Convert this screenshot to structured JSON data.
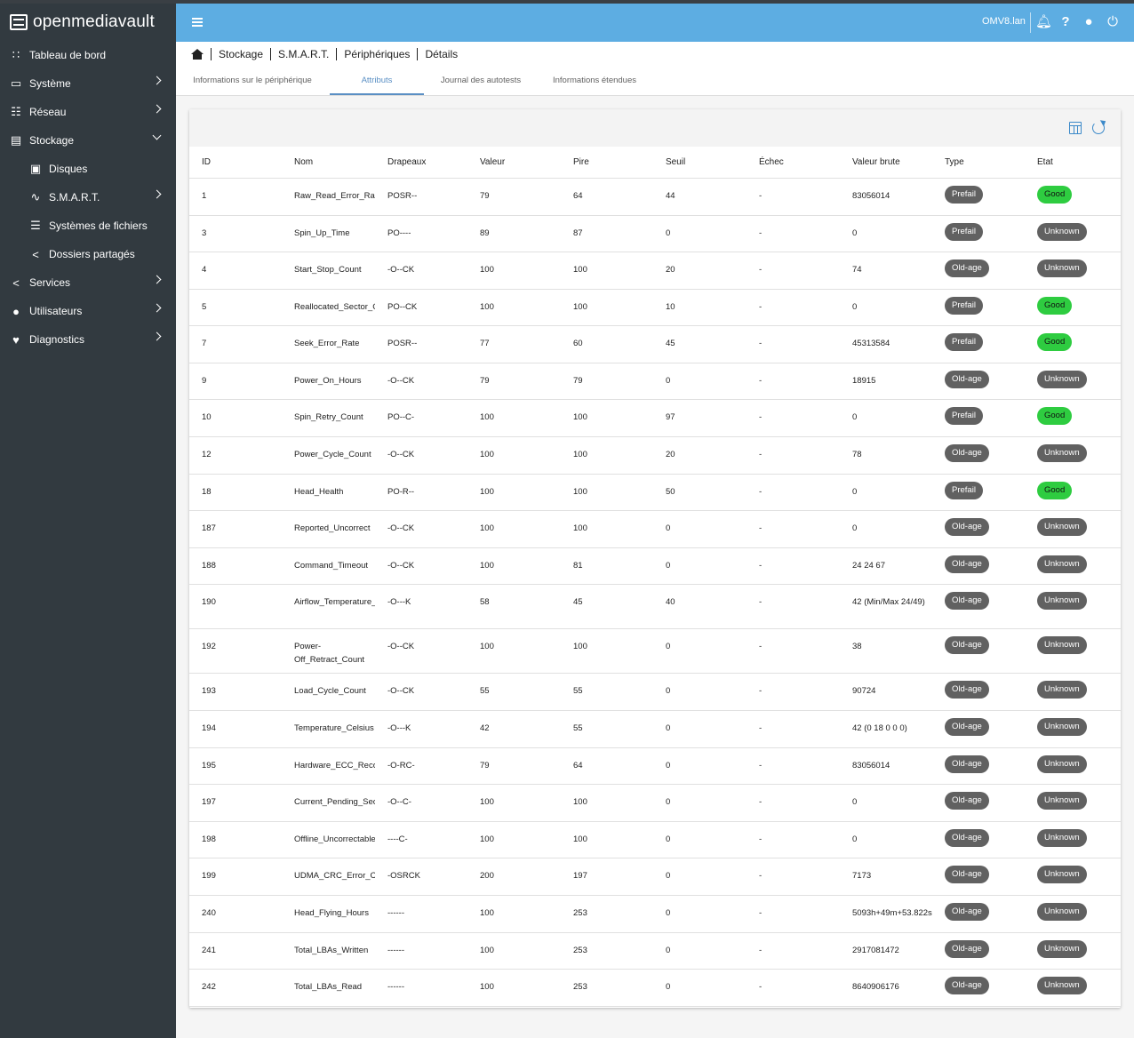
{
  "app": {
    "name": "openmediavault",
    "hostname": "OMV8.lan"
  },
  "sidebar": {
    "items": [
      {
        "label": "Tableau de bord",
        "icon": "dashboard-icon",
        "sub": false,
        "chevron": ""
      },
      {
        "label": "Système",
        "icon": "laptop-icon",
        "sub": false,
        "chevron": "right"
      },
      {
        "label": "Réseau",
        "icon": "network-icon",
        "sub": false,
        "chevron": "right"
      },
      {
        "label": "Stockage",
        "icon": "storage-icon",
        "sub": false,
        "chevron": "down"
      },
      {
        "label": "Disques",
        "icon": "disk-icon",
        "sub": true,
        "chevron": ""
      },
      {
        "label": "S.M.A.R.T.",
        "icon": "pulse-icon",
        "sub": true,
        "chevron": "right"
      },
      {
        "label": "Systèmes de fichiers",
        "icon": "filesystem-icon",
        "sub": true,
        "chevron": ""
      },
      {
        "label": "Dossiers partagés",
        "icon": "share-icon",
        "sub": true,
        "chevron": ""
      },
      {
        "label": "Services",
        "icon": "share-icon",
        "sub": false,
        "chevron": "right"
      },
      {
        "label": "Utilisateurs",
        "icon": "users-icon",
        "sub": false,
        "chevron": "right"
      },
      {
        "label": "Diagnostics",
        "icon": "heart-pulse-icon",
        "sub": false,
        "chevron": "right"
      }
    ]
  },
  "breadcrumb": [
    "Stockage",
    "S.M.A.R.T.",
    "Périphériques",
    "Détails"
  ],
  "tabs": [
    {
      "label": "Informations sur le périphérique",
      "active": false
    },
    {
      "label": "Attributs",
      "active": true
    },
    {
      "label": "Journal des autotests",
      "active": false
    },
    {
      "label": "Informations étendues",
      "active": false
    }
  ],
  "table": {
    "columns": [
      "ID",
      "Nom",
      "Drapeaux",
      "Valeur",
      "Pire",
      "Seuil",
      "Échec",
      "Valeur brute",
      "Type",
      "Etat"
    ],
    "rows": [
      [
        "1",
        "Raw_Read_Error_Rate",
        "POSR--",
        "79",
        "64",
        "44",
        "-",
        "83056014",
        "Prefail",
        "Good"
      ],
      [
        "3",
        "Spin_Up_Time",
        "PO----",
        "89",
        "87",
        "0",
        "-",
        "0",
        "Prefail",
        "Unknown"
      ],
      [
        "4",
        "Start_Stop_Count",
        "-O--CK",
        "100",
        "100",
        "20",
        "-",
        "74",
        "Old-age",
        "Unknown"
      ],
      [
        "5",
        "Reallocated_Sector_Ct",
        "PO--CK",
        "100",
        "100",
        "10",
        "-",
        "0",
        "Prefail",
        "Good"
      ],
      [
        "7",
        "Seek_Error_Rate",
        "POSR--",
        "77",
        "60",
        "45",
        "-",
        "45313584",
        "Prefail",
        "Good"
      ],
      [
        "9",
        "Power_On_Hours",
        "-O--CK",
        "79",
        "79",
        "0",
        "-",
        "18915",
        "Old-age",
        "Unknown"
      ],
      [
        "10",
        "Spin_Retry_Count",
        "PO--C-",
        "100",
        "100",
        "97",
        "-",
        "0",
        "Prefail",
        "Good"
      ],
      [
        "12",
        "Power_Cycle_Count",
        "-O--CK",
        "100",
        "100",
        "20",
        "-",
        "78",
        "Old-age",
        "Unknown"
      ],
      [
        "18",
        "Head_Health",
        "PO-R--",
        "100",
        "100",
        "50",
        "-",
        "0",
        "Prefail",
        "Good"
      ],
      [
        "187",
        "Reported_Uncorrect",
        "-O--CK",
        "100",
        "100",
        "0",
        "-",
        "0",
        "Old-age",
        "Unknown"
      ],
      [
        "188",
        "Command_Timeout",
        "-O--CK",
        "100",
        "81",
        "0",
        "-",
        "24 24 67",
        "Old-age",
        "Unknown"
      ],
      [
        "190",
        "Airflow_Temperature_Cel",
        "-O---K",
        "58",
        "45",
        "40",
        "-",
        "42 (Min/Max 24/49)",
        "Old-age",
        "Unknown"
      ],
      [
        "192",
        "Power-Off_Retract_Count",
        "-O--CK",
        "100",
        "100",
        "0",
        "-",
        "38",
        "Old-age",
        "Unknown"
      ],
      [
        "193",
        "Load_Cycle_Count",
        "-O--CK",
        "55",
        "55",
        "0",
        "-",
        "90724",
        "Old-age",
        "Unknown"
      ],
      [
        "194",
        "Temperature_Celsius",
        "-O---K",
        "42",
        "55",
        "0",
        "-",
        "42 (0 18 0 0 0)",
        "Old-age",
        "Unknown"
      ],
      [
        "195",
        "Hardware_ECC_Recovered",
        "-O-RC-",
        "79",
        "64",
        "0",
        "-",
        "83056014",
        "Old-age",
        "Unknown"
      ],
      [
        "197",
        "Current_Pending_Sector",
        "-O--C-",
        "100",
        "100",
        "0",
        "-",
        "0",
        "Old-age",
        "Unknown"
      ],
      [
        "198",
        "Offline_Uncorrectable",
        "----C-",
        "100",
        "100",
        "0",
        "-",
        "0",
        "Old-age",
        "Unknown"
      ],
      [
        "199",
        "UDMA_CRC_Error_Count",
        "-OSRCK",
        "200",
        "197",
        "0",
        "-",
        "7173",
        "Old-age",
        "Unknown"
      ],
      [
        "240",
        "Head_Flying_Hours",
        "------",
        "100",
        "253",
        "0",
        "-",
        "5093h+49m+53.822s",
        "Old-age",
        "Unknown"
      ],
      [
        "241",
        "Total_LBAs_Written",
        "------",
        "100",
        "253",
        "0",
        "-",
        "2917081472",
        "Old-age",
        "Unknown"
      ],
      [
        "242",
        "Total_LBAs_Read",
        "------",
        "100",
        "253",
        "0",
        "-",
        "8640906176",
        "Old-age",
        "Unknown"
      ]
    ]
  },
  "colors": {
    "header": "#5dade2",
    "sidebar": "#323a40",
    "chip_grey": "#616161",
    "chip_green": "#2ecc40",
    "accent": "#5a8fc4"
  }
}
